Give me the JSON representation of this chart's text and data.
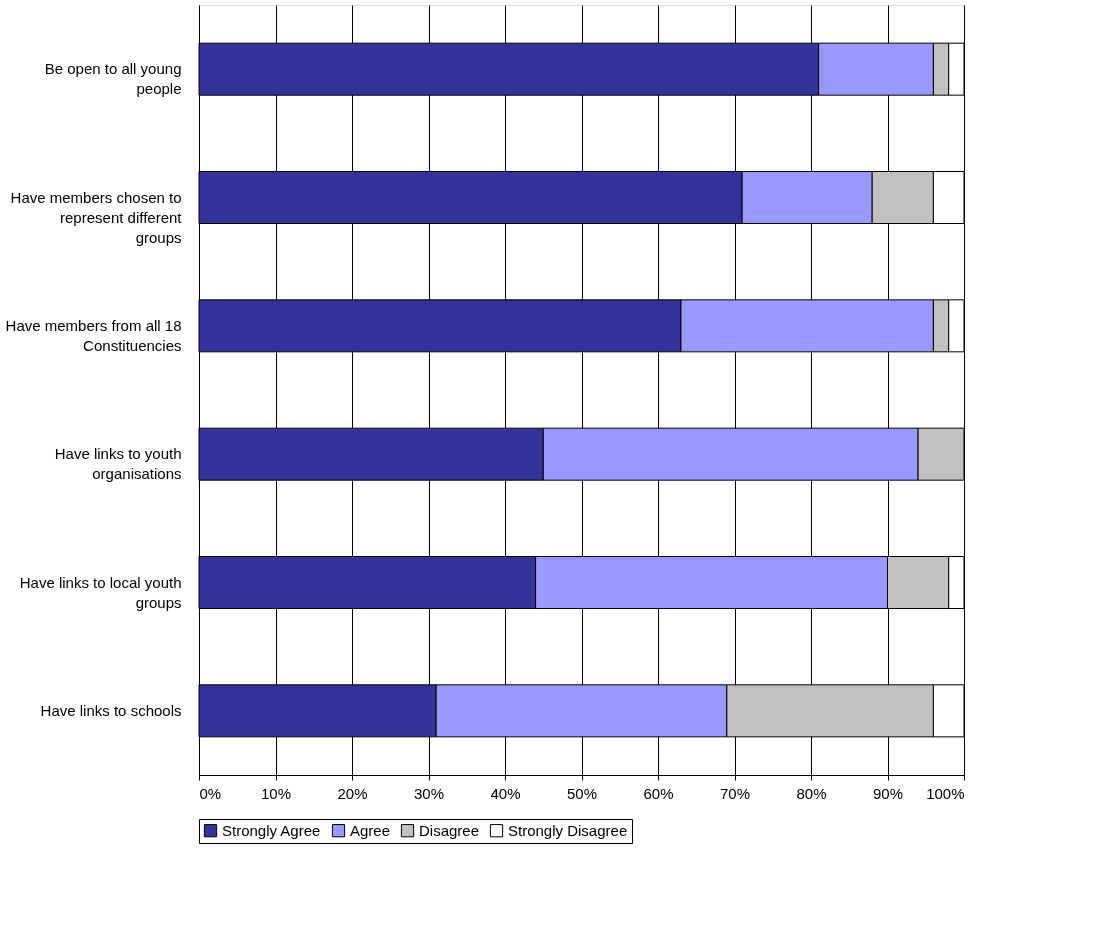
{
  "chart_data": {
    "type": "bar",
    "orientation": "horizontal",
    "stacked": true,
    "categories": [
      "Be open to all young people",
      "Have members chosen to represent different groups",
      "Have members from all 18 Constituencies",
      "Have links to youth organisations",
      "Have links to local youth groups",
      "Have links to schools"
    ],
    "series": [
      {
        "name": "Strongly Agree",
        "color": "#333399",
        "values": [
          81,
          71,
          63,
          45,
          44,
          31
        ]
      },
      {
        "name": "Agree",
        "color": "#9999ff",
        "values": [
          15,
          17,
          33,
          49,
          46,
          38
        ]
      },
      {
        "name": "Disagree",
        "color": "#c0c0c0",
        "values": [
          2,
          8,
          2,
          6,
          8,
          27
        ]
      },
      {
        "name": "Strongly Disagree",
        "color": "#ffffff",
        "values": [
          2,
          4,
          2,
          0,
          2,
          4
        ]
      }
    ],
    "xlim": [
      0,
      100
    ],
    "xticks": [
      {
        "value": 0,
        "label": "0%"
      },
      {
        "value": 10,
        "label": "10%"
      },
      {
        "value": 20,
        "label": "20%"
      },
      {
        "value": 30,
        "label": "30%"
      },
      {
        "value": 40,
        "label": "40%"
      },
      {
        "value": 50,
        "label": "50%"
      },
      {
        "value": 60,
        "label": "60%"
      },
      {
        "value": 70,
        "label": "70%"
      },
      {
        "value": 80,
        "label": "80%"
      },
      {
        "value": 90,
        "label": "90%"
      },
      {
        "value": 100,
        "label": "100%"
      }
    ],
    "grid": "x",
    "legend": "bottom"
  }
}
